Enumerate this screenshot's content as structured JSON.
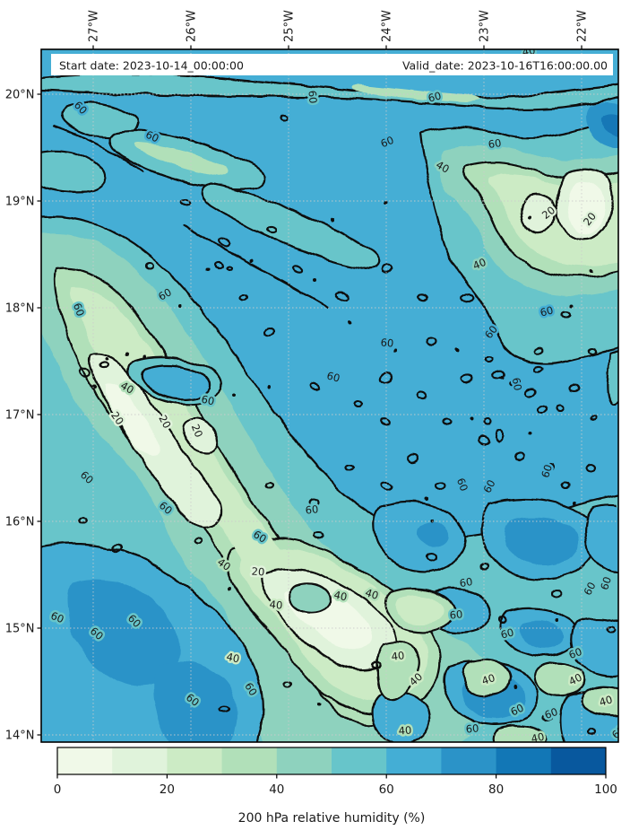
{
  "annotation_box": {
    "start_label": "Start date: 2023-10-14_00:00:00",
    "valid_label": "Valid_date: 2023-10-16T16:00:00.00"
  },
  "axes": {
    "lon_ticks": [
      "27°W",
      "26°W",
      "25°W",
      "24°W",
      "23°W",
      "22°W"
    ],
    "lat_ticks": [
      "20°N",
      "19°N",
      "18°N",
      "17°N",
      "16°N",
      "15°N",
      "14°N"
    ]
  },
  "colorbar": {
    "label": "200 hPa relative humidity (%)",
    "tick_labels": [
      "0",
      "20",
      "40",
      "60",
      "80",
      "100"
    ],
    "range": [
      0,
      100
    ],
    "segment_colors": [
      "#f0f9e8",
      "#e0f3db",
      "#ccebc5",
      "#b1e0b9",
      "#8ed2be",
      "#67c5ca",
      "#44aed5",
      "#2b93c8",
      "#1277b6",
      "#08589e"
    ]
  },
  "map_style": {
    "contour_line_color": "#0a0a0a",
    "grid_color": "#cccccc",
    "frame_color": "#000000",
    "annotation_bg": "#ffffff"
  },
  "chart_data": {
    "type": "heatmap",
    "title": "200 hPa relative humidity (%)",
    "field_units": "%",
    "start_date": "2023-10-14_00:00:00",
    "valid_date": "2023-10-16T16:00:00.00",
    "x_axis": {
      "side": "top",
      "tick_values_deg_west": [
        27,
        26,
        25,
        24,
        23,
        22
      ],
      "range_deg_west": [
        27.53,
        21.62
      ]
    },
    "y_axis": {
      "side": "left",
      "tick_values_deg_north": [
        20,
        19,
        18,
        17,
        16,
        15,
        14
      ],
      "range_deg_north": [
        13.93,
        20.42
      ]
    },
    "fill_levels_percent": [
      0,
      10,
      20,
      30,
      40,
      50,
      60,
      70,
      80,
      90,
      100
    ],
    "labeled_contour_levels_percent": [
      20,
      40,
      60
    ],
    "colormap_hex": [
      "#f0f9e8",
      "#e0f3db",
      "#ccebc5",
      "#b1e0b9",
      "#8ed2be",
      "#67c5ca",
      "#44aed5",
      "#2b93c8",
      "#1277b6",
      "#08589e"
    ],
    "grid": "dashed, 1-degree spacing",
    "legend_position": "horizontal colorbar, bottom",
    "estimated_rh_grid": {
      "lon_deg_west": [
        27.5,
        27.0,
        26.5,
        26.0,
        25.5,
        25.0,
        24.5,
        24.0,
        23.5,
        23.0,
        22.5,
        22.0
      ],
      "lat_deg_north": [
        20.25,
        19.75,
        19.25,
        18.75,
        18.25,
        17.75,
        17.25,
        16.75,
        16.25,
        15.75,
        15.25,
        14.75,
        14.25
      ],
      "rh_percent_rows": [
        [
          65,
          65,
          65,
          65,
          60,
          55,
          65,
          65,
          65,
          60,
          55,
          65
        ],
        [
          55,
          65,
          65,
          65,
          65,
          55,
          45,
          65,
          65,
          65,
          65,
          75
        ],
        [
          55,
          65,
          55,
          65,
          65,
          65,
          65,
          55,
          45,
          35,
          25,
          45
        ],
        [
          45,
          65,
          65,
          55,
          65,
          65,
          65,
          55,
          45,
          15,
          8,
          25
        ],
        [
          35,
          55,
          65,
          65,
          65,
          65,
          65,
          65,
          55,
          45,
          45,
          55
        ],
        [
          45,
          35,
          45,
          55,
          65,
          65,
          65,
          65,
          55,
          65,
          55,
          45
        ],
        [
          30,
          15,
          55,
          45,
          55,
          65,
          65,
          65,
          65,
          55,
          45,
          55
        ],
        [
          55,
          15,
          15,
          25,
          45,
          55,
          65,
          65,
          65,
          55,
          55,
          65
        ],
        [
          65,
          55,
          45,
          25,
          25,
          35,
          55,
          65,
          55,
          55,
          65,
          55
        ],
        [
          55,
          65,
          65,
          55,
          25,
          15,
          25,
          45,
          55,
          65,
          55,
          65
        ],
        [
          55,
          75,
          65,
          45,
          15,
          15,
          25,
          45,
          65,
          55,
          65,
          55
        ],
        [
          65,
          75,
          55,
          45,
          25,
          15,
          25,
          35,
          45,
          55,
          45,
          65
        ],
        [
          55,
          65,
          75,
          55,
          35,
          25,
          15,
          35,
          65,
          65,
          55,
          55
        ]
      ]
    }
  },
  "contour_labels": [
    [
      60,
      90,
      120,
      45,
      "#44aed5"
    ],
    [
      60,
      170,
      152,
      25,
      "#44aed5"
    ],
    [
      60,
      349,
      108,
      85,
      "#67c5ca"
    ],
    [
      60,
      432,
      158,
      -22,
      "#44aed5"
    ],
    [
      60,
      485,
      108,
      -15,
      "#67c5ca"
    ],
    [
      60,
      552,
      160,
      -8,
      "#67c5ca"
    ],
    [
      40,
      494,
      186,
      30,
      "#8ed2be"
    ],
    [
      40,
      590,
      57,
      -10,
      "#67c5ca"
    ],
    [
      20,
      612,
      237,
      -38,
      "#e0f3db"
    ],
    [
      20,
      658,
      244,
      -52,
      "#e0f3db"
    ],
    [
      60,
      88,
      345,
      70,
      "#67c5ca"
    ],
    [
      60,
      184,
      328,
      -30,
      "#67c5ca"
    ],
    [
      40,
      535,
      294,
      -22,
      "#8ed2be"
    ],
    [
      60,
      610,
      347,
      -15,
      "#44aed5"
    ],
    [
      60,
      432,
      382,
      5,
      "#44aed5"
    ],
    [
      60,
      548,
      370,
      -52,
      "#44aed5"
    ],
    [
      60,
      372,
      420,
      15,
      "#44aed5"
    ],
    [
      40,
      142,
      432,
      30,
      "#b1e0b9"
    ],
    [
      60,
      232,
      446,
      12,
      "#67c5ca"
    ],
    [
      20,
      131,
      466,
      55,
      "#e0f3db"
    ],
    [
      20,
      184,
      470,
      62,
      "#e0f3db"
    ],
    [
      20,
      220,
      480,
      68,
      "#e0f3db"
    ],
    [
      60,
      97,
      532,
      42,
      "#67c5ca"
    ],
    [
      60,
      185,
      566,
      40,
      "#67c5ca"
    ],
    [
      60,
      577,
      428,
      80,
      "#44aed5"
    ],
    [
      60,
      516,
      540,
      70,
      "#44aed5"
    ],
    [
      60,
      546,
      542,
      -62,
      "#44aed5"
    ],
    [
      60,
      610,
      525,
      -72,
      "#44aed5"
    ],
    [
      60,
      64,
      688,
      22,
      "#67c5ca"
    ],
    [
      60,
      108,
      706,
      40,
      "#67c5ca"
    ],
    [
      60,
      150,
      692,
      45,
      "#67c5ca"
    ],
    [
      60,
      348,
      568,
      -6,
      "#67c5ca"
    ],
    [
      60,
      290,
      598,
      32,
      "#67c5ca"
    ],
    [
      20,
      288,
      637,
      4,
      "#e0f3db"
    ],
    [
      40,
      250,
      629,
      35,
      "#b1e0b9"
    ],
    [
      40,
      308,
      674,
      6,
      "#ccebc5"
    ],
    [
      40,
      380,
      664,
      12,
      "#b1e0b9"
    ],
    [
      40,
      415,
      662,
      18,
      "#b1e0b9"
    ],
    [
      60,
      280,
      768,
      58,
      "#67c5ca"
    ],
    [
      60,
      215,
      780,
      38,
      "#67c5ca"
    ],
    [
      40,
      260,
      733,
      12,
      "#ccebc5"
    ],
    [
      40,
      452,
      814,
      -4,
      "#b1e0b9"
    ],
    [
      40,
      600,
      822,
      -12,
      "#b1e0b9"
    ],
    [
      60,
      527,
      812,
      -5,
      "#67c5ca"
    ],
    [
      60,
      520,
      649,
      -10,
      "#67c5ca"
    ],
    [
      60,
      509,
      685,
      -6,
      "#67c5ca"
    ],
    [
      60,
      566,
      706,
      -15,
      "#67c5ca"
    ],
    [
      60,
      642,
      728,
      -20,
      "#67c5ca"
    ],
    [
      60,
      658,
      656,
      -62,
      "#67c5ca"
    ],
    [
      60,
      676,
      650,
      -72,
      "#67c5ca"
    ],
    [
      40,
      444,
      731,
      -6,
      "#ccebc5"
    ],
    [
      40,
      464,
      757,
      -42,
      "#ccebc5"
    ],
    [
      40,
      545,
      757,
      -18,
      "#ccebc5"
    ],
    [
      40,
      642,
      757,
      -26,
      "#ccebc5"
    ],
    [
      40,
      676,
      781,
      -16,
      "#ccebc5"
    ],
    [
      60,
      577,
      791,
      -26,
      "#67c5ca"
    ],
    [
      60,
      690,
      816,
      -42,
      "#67c5ca"
    ],
    [
      60,
      695,
      560,
      -80,
      "#67c5ca"
    ],
    [
      60,
      615,
      795,
      -20,
      "#67c5ca"
    ]
  ]
}
